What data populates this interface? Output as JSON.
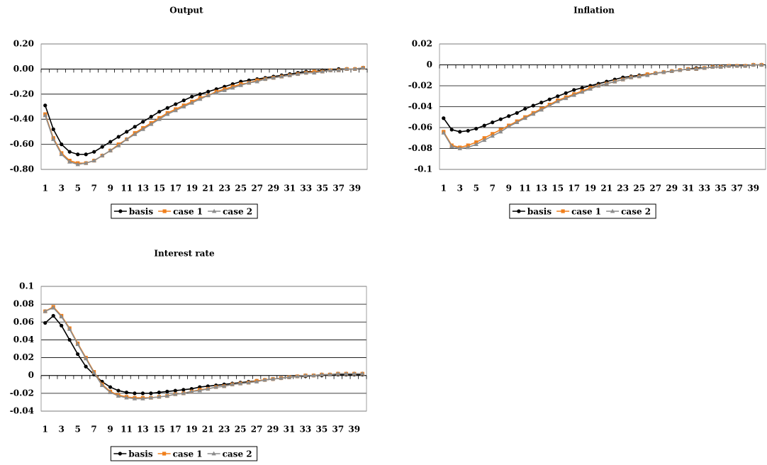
{
  "chart_data": [
    {
      "type": "line",
      "title": "Output",
      "categories": [
        1,
        null,
        3,
        null,
        5,
        null,
        7,
        null,
        9,
        null,
        11,
        null,
        13,
        null,
        15,
        null,
        17,
        null,
        19,
        null,
        21,
        null,
        23,
        null,
        25,
        null,
        27,
        null,
        29,
        null,
        31,
        null,
        33,
        null,
        35,
        null,
        37,
        null,
        39,
        null
      ],
      "ylim": [
        -0.8,
        0.2
      ],
      "yticks": [
        {
          "value": 0.2,
          "label": "0.20"
        },
        {
          "value": 0,
          "label": "0.00"
        },
        {
          "value": -0.2,
          "label": "-0.20"
        },
        {
          "value": -0.4,
          "label": "-0.40"
        },
        {
          "value": -0.6,
          "label": "-0.60"
        },
        {
          "value": -0.8,
          "label": "-0.80"
        }
      ],
      "grid": true,
      "legend": "bottom",
      "series": [
        {
          "name": "basis",
          "color": "#000000",
          "marker": "circle",
          "values": [
            -0.29,
            -0.48,
            -0.6,
            -0.66,
            -0.68,
            -0.68,
            -0.66,
            -0.62,
            -0.58,
            -0.54,
            -0.5,
            -0.46,
            -0.42,
            -0.38,
            -0.34,
            -0.31,
            -0.28,
            -0.25,
            -0.22,
            -0.2,
            -0.18,
            -0.16,
            -0.14,
            -0.12,
            -0.1,
            -0.09,
            -0.08,
            -0.07,
            -0.06,
            -0.05,
            -0.04,
            -0.03,
            -0.02,
            -0.02,
            -0.01,
            -0.01,
            0.0,
            0.0,
            0.0,
            0.01
          ]
        },
        {
          "name": "case 1",
          "color": "#f07f1b",
          "marker": "square",
          "values": [
            -0.36,
            -0.55,
            -0.67,
            -0.73,
            -0.75,
            -0.75,
            -0.73,
            -0.69,
            -0.65,
            -0.6,
            -0.56,
            -0.51,
            -0.47,
            -0.43,
            -0.39,
            -0.35,
            -0.32,
            -0.29,
            -0.26,
            -0.23,
            -0.21,
            -0.18,
            -0.16,
            -0.14,
            -0.12,
            -0.11,
            -0.09,
            -0.08,
            -0.07,
            -0.06,
            -0.05,
            -0.04,
            -0.03,
            -0.02,
            -0.02,
            -0.01,
            -0.01,
            0.0,
            0.0,
            0.01
          ]
        },
        {
          "name": "case 2",
          "color": "#8c8c8c",
          "marker": "triangle",
          "values": [
            -0.37,
            -0.56,
            -0.68,
            -0.74,
            -0.76,
            -0.75,
            -0.73,
            -0.69,
            -0.65,
            -0.61,
            -0.56,
            -0.52,
            -0.48,
            -0.44,
            -0.4,
            -0.36,
            -0.33,
            -0.3,
            -0.27,
            -0.24,
            -0.21,
            -0.19,
            -0.17,
            -0.15,
            -0.13,
            -0.11,
            -0.1,
            -0.08,
            -0.07,
            -0.06,
            -0.05,
            -0.04,
            -0.03,
            -0.03,
            -0.02,
            -0.01,
            -0.01,
            0.0,
            0.0,
            0.01
          ]
        }
      ]
    },
    {
      "type": "line",
      "title": "Inflation",
      "categories": [
        1,
        null,
        3,
        null,
        5,
        null,
        7,
        null,
        9,
        null,
        11,
        null,
        13,
        null,
        15,
        null,
        17,
        null,
        19,
        null,
        21,
        null,
        23,
        null,
        25,
        null,
        27,
        null,
        29,
        null,
        31,
        null,
        33,
        null,
        35,
        null,
        37,
        null,
        39,
        null
      ],
      "ylim": [
        -0.1,
        0.02
      ],
      "yticks": [
        0.02,
        0,
        -0.02,
        -0.04,
        -0.06,
        -0.08,
        -0.1
      ],
      "grid": true,
      "legend": "bottom",
      "series": [
        {
          "name": "basis",
          "color": "#000000",
          "marker": "circle",
          "values": [
            -0.051,
            -0.062,
            -0.064,
            -0.063,
            -0.061,
            -0.058,
            -0.055,
            -0.052,
            -0.049,
            -0.046,
            -0.042,
            -0.039,
            -0.036,
            -0.033,
            -0.03,
            -0.027,
            -0.024,
            -0.022,
            -0.02,
            -0.018,
            -0.016,
            -0.014,
            -0.012,
            -0.011,
            -0.01,
            -0.009,
            -0.008,
            -0.007,
            -0.006,
            -0.005,
            -0.004,
            -0.003,
            -0.003,
            -0.002,
            -0.002,
            -0.001,
            -0.001,
            -0.001,
            0.0,
            0.0
          ]
        },
        {
          "name": "case 1",
          "color": "#f07f1b",
          "marker": "square",
          "values": [
            -0.064,
            -0.077,
            -0.079,
            -0.077,
            -0.074,
            -0.07,
            -0.066,
            -0.062,
            -0.058,
            -0.054,
            -0.05,
            -0.046,
            -0.042,
            -0.038,
            -0.034,
            -0.031,
            -0.028,
            -0.025,
            -0.022,
            -0.02,
            -0.018,
            -0.016,
            -0.014,
            -0.012,
            -0.011,
            -0.009,
            -0.008,
            -0.007,
            -0.006,
            -0.005,
            -0.004,
            -0.004,
            -0.003,
            -0.002,
            -0.002,
            -0.001,
            -0.001,
            -0.001,
            0.0,
            0.0
          ]
        },
        {
          "name": "case 2",
          "color": "#8c8c8c",
          "marker": "triangle",
          "values": [
            -0.065,
            -0.078,
            -0.08,
            -0.079,
            -0.076,
            -0.072,
            -0.068,
            -0.064,
            -0.059,
            -0.055,
            -0.051,
            -0.047,
            -0.043,
            -0.039,
            -0.035,
            -0.032,
            -0.029,
            -0.026,
            -0.023,
            -0.02,
            -0.018,
            -0.016,
            -0.014,
            -0.012,
            -0.011,
            -0.01,
            -0.008,
            -0.007,
            -0.006,
            -0.005,
            -0.004,
            -0.004,
            -0.003,
            -0.002,
            -0.002,
            -0.001,
            -0.001,
            -0.001,
            0.0,
            0.0
          ]
        }
      ]
    },
    {
      "type": "line",
      "title": "Interest rate",
      "categories": [
        1,
        null,
        3,
        null,
        5,
        null,
        7,
        null,
        9,
        null,
        11,
        null,
        13,
        null,
        15,
        null,
        17,
        null,
        19,
        null,
        21,
        null,
        23,
        null,
        25,
        null,
        27,
        null,
        29,
        null,
        31,
        null,
        33,
        null,
        35,
        null,
        37,
        null,
        39,
        null
      ],
      "ylim": [
        -0.04,
        0.1
      ],
      "yticks": [
        0.1,
        0.08,
        0.06,
        0.04,
        0.02,
        0,
        -0.02,
        -0.04
      ],
      "grid": true,
      "legend": "bottom",
      "series": [
        {
          "name": "basis",
          "color": "#000000",
          "marker": "circle",
          "values": [
            0.059,
            0.067,
            0.056,
            0.04,
            0.024,
            0.01,
            0.001,
            -0.007,
            -0.013,
            -0.017,
            -0.019,
            -0.02,
            -0.02,
            -0.02,
            -0.019,
            -0.018,
            -0.017,
            -0.016,
            -0.015,
            -0.013,
            -0.012,
            -0.011,
            -0.01,
            -0.009,
            -0.008,
            -0.007,
            -0.006,
            -0.005,
            -0.004,
            -0.003,
            -0.002,
            -0.001,
            -0.001,
            0.0,
            0.0,
            0.001,
            0.001,
            0.001,
            0.001,
            0.001
          ]
        },
        {
          "name": "case 1",
          "color": "#f07f1b",
          "marker": "square",
          "values": [
            0.072,
            0.077,
            0.067,
            0.053,
            0.036,
            0.02,
            0.004,
            -0.01,
            -0.018,
            -0.022,
            -0.024,
            -0.025,
            -0.025,
            -0.025,
            -0.024,
            -0.023,
            -0.021,
            -0.02,
            -0.018,
            -0.016,
            -0.015,
            -0.013,
            -0.012,
            -0.01,
            -0.009,
            -0.008,
            -0.006,
            -0.005,
            -0.004,
            -0.003,
            -0.002,
            -0.001,
            0.0,
            0.0,
            0.001,
            0.001,
            0.002,
            0.002,
            0.002,
            0.002
          ]
        },
        {
          "name": "case 2",
          "color": "#8c8c8c",
          "marker": "triangle",
          "values": [
            0.072,
            0.076,
            0.066,
            0.052,
            0.035,
            0.019,
            0.003,
            -0.011,
            -0.019,
            -0.023,
            -0.025,
            -0.026,
            -0.026,
            -0.025,
            -0.024,
            -0.023,
            -0.021,
            -0.02,
            -0.018,
            -0.017,
            -0.015,
            -0.013,
            -0.012,
            -0.01,
            -0.009,
            -0.008,
            -0.007,
            -0.005,
            -0.004,
            -0.003,
            -0.002,
            -0.001,
            0.0,
            0.0,
            0.001,
            0.001,
            0.002,
            0.002,
            0.002,
            0.002
          ]
        }
      ]
    }
  ]
}
